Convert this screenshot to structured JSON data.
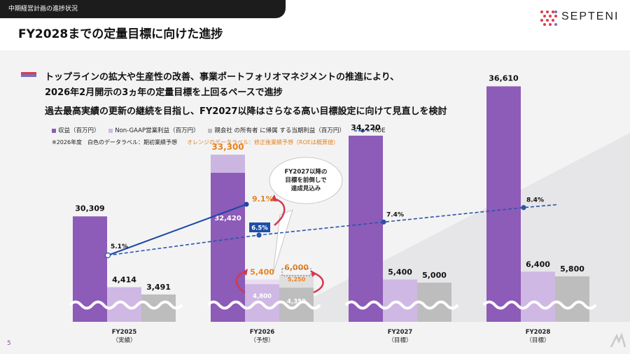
{
  "header": {
    "tab_label": "中期経営計画の進捗状況",
    "logo_text": "SEPTENI",
    "page_title": "FY2028までの定量目標に向けた進捗"
  },
  "bullets": {
    "line1": "トップラインの拡大や生産性の改善、事業ポートフォリオマネジメントの推進により、",
    "line2": "2026年2月開示の3ヵ年の定量目標を上回るペースで進捗",
    "line3": "過去最高実績の更新の継続を目指し、FY2027以降はさらなる高い目標設定に向けて見直しを検討"
  },
  "legend": {
    "revenue": "収益（百万円）",
    "non_gaap": "Non-GAAP営業利益（百万円）",
    "net_income": "親会社 の所有者 に帰属 する当期利益（百万円）",
    "roe": "ROE"
  },
  "notes": {
    "white_label": "※2026年度　白色のデータラベル：期初業績予想",
    "orange_label": "オレンジのデータラベル：修正後業績予想（ROEは概算値）"
  },
  "callout": {
    "line1": "FY2027以降の",
    "line2": "目標を前倒しで",
    "line3": "達成見込み"
  },
  "page_number": "5",
  "colors": {
    "revenue": "#8d5bb8",
    "revenue_light": "#cbb6e2",
    "non_gaap": "#cfb8e4",
    "net_income": "#bdbdbd",
    "orange": "#e8821e",
    "roe_line": "#2a55a8",
    "roe_line_revised": "#1a49a8"
  },
  "chart_data": {
    "type": "bar",
    "categories": [
      {
        "year": "FY2025",
        "sub": "（実績）"
      },
      {
        "year": "FY2026",
        "sub": "（予想）"
      },
      {
        "year": "FY2027",
        "sub": "（目標）"
      },
      {
        "year": "FY2028",
        "sub": "（目標）"
      }
    ],
    "series": [
      {
        "key": "revenue",
        "values": [
          30309,
          32420,
          34220,
          36610
        ],
        "labels": [
          "30,309",
          "32,420",
          "34,220",
          "36,610"
        ]
      },
      {
        "key": "non_gaap",
        "values": [
          4414,
          4800,
          5400,
          6400
        ],
        "labels": [
          "4,414",
          "4,800",
          "5,400",
          "6,400"
        ]
      },
      {
        "key": "net_income",
        "values": [
          3491,
          4350,
          5000,
          5800
        ],
        "labels": [
          "3,491",
          "4,350",
          "5,000",
          "5,800"
        ]
      },
      {
        "key": "roe",
        "values": [
          5.1,
          6.5,
          7.4,
          8.4
        ],
        "labels": [
          "5.1%",
          "6.5%",
          "7.4%",
          "8.4%"
        ]
      }
    ],
    "revised_fy2026": {
      "revenue": 33300,
      "revenue_label": "33,300",
      "non_gaap": 5400,
      "non_gaap_label": "5,400",
      "net_income": 6000,
      "net_income_label": "6,000",
      "net_income_sub": 5250,
      "net_income_sub_label": "5,250",
      "roe": 9.1,
      "roe_label": "9.1%"
    },
    "axis_break": true
  }
}
